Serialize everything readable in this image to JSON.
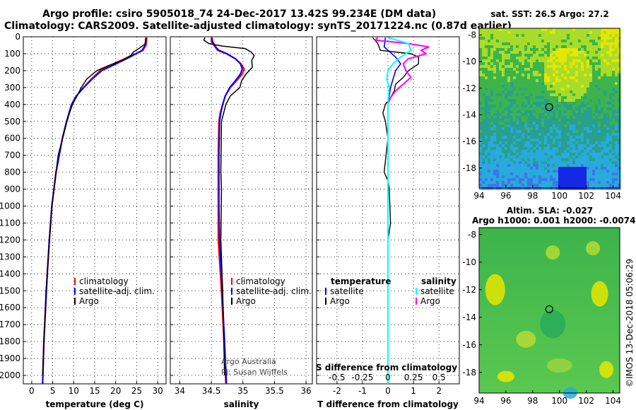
{
  "title_line1": "Argo profile: csiro 5905018_74 24-Dec-2017 13.42S 99.234E (DM data)",
  "title_line2": "Climatology: CARS2009. Satellite-adjusted climatology: synTS_20171224.nc (0.87d earlier)",
  "map_top_title": "sat. SST: 26.5 Argo: 27.2",
  "map_bottom_title_1": "Altim. SLA: -0.027",
  "map_bottom_title_2": "Argo h1000: 0.001 h2000: -0.0074",
  "stamp": "©IMOS 13-Dec-2018 05:06:29",
  "colors": {
    "climatology": "#ff0000",
    "satellite": "#0000ff",
    "argo": "#000000",
    "sat_s": "#00ffff",
    "argo_s": "#ff00ff"
  },
  "chart_data": [
    {
      "type": "line",
      "xlabel": "temperature (deg C)",
      "ylabel": "",
      "xlim": [
        -2,
        32
      ],
      "ylim": [
        2050,
        0
      ],
      "xticks": [
        0,
        5,
        10,
        15,
        20,
        25,
        30
      ],
      "yticks": [
        0,
        100,
        200,
        300,
        400,
        500,
        600,
        700,
        800,
        900,
        1000,
        1100,
        1200,
        1300,
        1400,
        1500,
        1600,
        1700,
        1800,
        1900,
        2000
      ],
      "legend": [
        "climatology",
        "satellite-adj. clim.",
        "Argo"
      ],
      "series": [
        {
          "name": "climatology",
          "depth": [
            5,
            50,
            80,
            120,
            160,
            200,
            250,
            300,
            350,
            400,
            500,
            600,
            800,
            1000,
            1200,
            1400,
            1600,
            1800,
            2050
          ],
          "values": [
            27.4,
            27.2,
            26.5,
            23,
            19.5,
            16.3,
            14.2,
            12.3,
            10.6,
            9.5,
            8.3,
            7.3,
            5.8,
            4.8,
            4.2,
            3.7,
            3.3,
            2.9,
            2.6
          ]
        },
        {
          "name": "satellite-adj. clim.",
          "depth": [
            5,
            50,
            80,
            120,
            160,
            200,
            250,
            300,
            350,
            400,
            500,
            600,
            800,
            1000,
            1200,
            1400,
            1600,
            1800,
            2050
          ],
          "values": [
            27.2,
            27.0,
            26.3,
            23.4,
            20.1,
            16.7,
            14.4,
            12.4,
            10.6,
            9.5,
            8.3,
            7.3,
            5.8,
            4.8,
            4.2,
            3.7,
            3.3,
            2.9,
            2.6
          ]
        },
        {
          "name": "Argo",
          "depth": [
            5,
            40,
            70,
            90,
            110,
            140,
            170,
            200,
            250,
            300,
            350,
            400,
            450,
            500,
            700,
            1000,
            1500,
            2000
          ],
          "values": [
            27.2,
            27.1,
            25.5,
            24.2,
            23.6,
            21.6,
            18.3,
            15.5,
            13.1,
            11.8,
            10.8,
            9.7,
            9.0,
            8.4,
            6.3,
            4.8,
            3.4,
            2.6
          ]
        }
      ]
    },
    {
      "type": "line",
      "xlabel": "salinity",
      "xlim": [
        33.85,
        36.1
      ],
      "ylim": [
        2050,
        0
      ],
      "xticks": [
        34,
        34.5,
        35,
        35.5,
        36
      ],
      "legend": [
        "climatology",
        "satellite-adj. clim.",
        "Argo"
      ],
      "annotations": [
        "Argo Australia",
        "PI: Susan Wijffels"
      ],
      "series": [
        {
          "name": "climatology",
          "depth": [
            5,
            30,
            60,
            80,
            100,
            130,
            160,
            190,
            220,
            260,
            300,
            350,
            400,
            450,
            500,
            700,
            1000,
            1200,
            1500,
            1800,
            2050
          ],
          "values": [
            34.5,
            34.5,
            34.56,
            34.6,
            34.74,
            34.88,
            34.97,
            35.02,
            34.99,
            34.9,
            34.8,
            34.72,
            34.68,
            34.64,
            34.62,
            34.61,
            34.61,
            34.61,
            34.66,
            34.7,
            34.73
          ]
        },
        {
          "name": "satellite-adj. clim.",
          "depth": [
            5,
            30,
            60,
            80,
            100,
            130,
            160,
            190,
            220,
            260,
            300,
            350,
            400,
            450,
            500,
            700,
            1000,
            1200,
            1500,
            1800,
            2050
          ],
          "values": [
            34.51,
            34.52,
            34.57,
            34.62,
            34.75,
            34.88,
            34.96,
            34.99,
            34.96,
            34.88,
            34.79,
            34.72,
            34.68,
            34.65,
            34.63,
            34.62,
            34.62,
            34.63,
            34.67,
            34.71,
            34.74
          ]
        },
        {
          "name": "Argo",
          "depth": [
            5,
            20,
            40,
            55,
            70,
            90,
            110,
            140,
            180,
            220,
            260,
            300,
            350,
            400,
            500,
            800,
            900,
            1200,
            1500,
            2000
          ],
          "values": [
            34.4,
            34.38,
            34.46,
            34.68,
            35.04,
            35.13,
            35.18,
            35.14,
            35.15,
            35.05,
            34.98,
            34.95,
            34.8,
            34.73,
            34.66,
            34.65,
            34.66,
            34.65,
            34.68,
            34.71
          ]
        }
      ]
    },
    {
      "type": "line",
      "xlabel": "T difference from climatology",
      "x2label": "S difference from climatology",
      "xlim": [
        -2.8,
        2.8
      ],
      "ylim": [
        2050,
        0
      ],
      "xticks": [
        -2,
        -1,
        0,
        1,
        2
      ],
      "x2ticks": [
        "-0.5",
        "-0.25",
        "0",
        "0.25",
        "0.5"
      ],
      "x2tick_positions": [
        -2,
        -1,
        0,
        1,
        2
      ],
      "legend_left_title": "temperature",
      "legend_right_title": "salinity",
      "legend_left": [
        "satellite",
        "Argo"
      ],
      "legend_right": [
        "satellite",
        "Argo"
      ],
      "series": [
        {
          "name": "temperature satellite",
          "depth": [
            5,
            60,
            120,
            160,
            200,
            300,
            400,
            600,
            1000,
            1500,
            2050
          ],
          "values": [
            -0.1,
            -0.15,
            0.3,
            0.5,
            0.3,
            0.1,
            0.0,
            0.0,
            0.0,
            0.0,
            0.0
          ]
        },
        {
          "name": "temperature Argo",
          "depth": [
            5,
            40,
            80,
            100,
            120,
            160,
            200,
            240,
            280,
            320,
            360,
            400,
            450,
            500,
            600,
            800,
            850,
            900,
            1100,
            1200,
            1500,
            2000
          ],
          "values": [
            -0.6,
            -0.4,
            -0.3,
            0.9,
            1.2,
            1.2,
            0.8,
            0.6,
            0.3,
            0.25,
            0.1,
            -0.1,
            -0.2,
            -0.1,
            0.0,
            -0.15,
            0.0,
            0.05,
            0.1,
            0.0,
            0.0,
            0.0
          ]
        },
        {
          "name": "salinity satellite",
          "depth": [
            5,
            40,
            80,
            120,
            160,
            200,
            250,
            300,
            400,
            600,
            1000,
            1500,
            2050
          ],
          "values": [
            0.0,
            0.8,
            0.9,
            0.5,
            0.2,
            0.0,
            -0.05,
            0.05,
            0.0,
            0.0,
            0.0,
            0.0,
            0.0
          ]
        },
        {
          "name": "salinity Argo",
          "depth": [
            5,
            20,
            40,
            60,
            80,
            100,
            130,
            160,
            200,
            240,
            280,
            320,
            360,
            400,
            500,
            700,
            1000,
            1500,
            2000
          ],
          "values": [
            -0.4,
            -0.5,
            0.8,
            1.6,
            1.3,
            1.5,
            0.8,
            0.6,
            0.7,
            0.9,
            0.6,
            0.3,
            0.1,
            0.0,
            0.0,
            0.0,
            0.0,
            0.0,
            0.0
          ]
        }
      ]
    },
    {
      "type": "heatmap",
      "title": "sat. SST: 26.5 Argo: 27.2",
      "xlim": [
        94,
        104.5
      ],
      "ylim": [
        -19.5,
        -7.5
      ],
      "xticks": [
        94,
        96,
        98,
        100,
        102,
        104
      ],
      "yticks": [
        -8,
        -10,
        -12,
        -14,
        -16,
        -18
      ],
      "float_lon": 99.234,
      "float_lat": -13.42
    },
    {
      "type": "heatmap",
      "title": "Altim. SLA: -0.027",
      "xlim": [
        94,
        104.5
      ],
      "ylim": [
        -19.5,
        -7.5
      ],
      "xticks": [
        94,
        96,
        98,
        100,
        102,
        104
      ],
      "yticks": [
        -8,
        -10,
        -12,
        -14,
        -16,
        -18
      ],
      "float_lon": 99.234,
      "float_lat": -13.42
    }
  ]
}
